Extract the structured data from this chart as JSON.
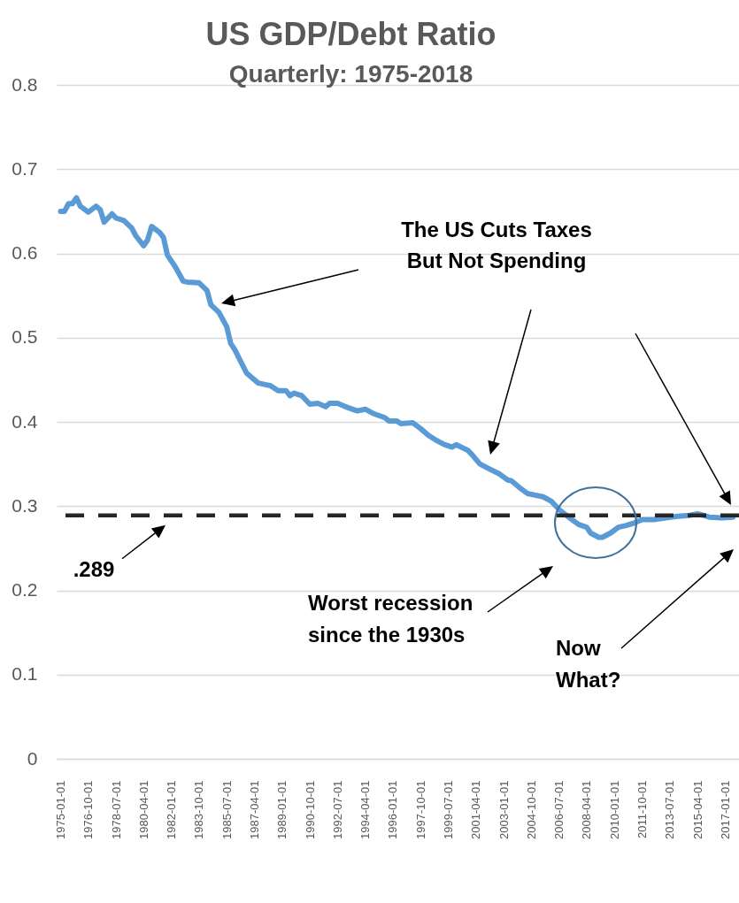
{
  "chart_data": {
    "type": "line",
    "title": "US GDP/Debt Ratio",
    "subtitle": "Quarterly: 1975-2018",
    "x": [
      "1975-01-01",
      "1975-04-01",
      "1975-07-01",
      "1975-10-01",
      "1976-01-01",
      "1976-04-01",
      "1976-10-01",
      "1977-04-01",
      "1977-07-01",
      "1977-10-01",
      "1978-04-01",
      "1978-07-01",
      "1979-01-01",
      "1979-07-01",
      "1979-10-01",
      "1980-04-01",
      "1980-07-01",
      "1980-10-01",
      "1981-04-01",
      "1981-07-01",
      "1981-10-01",
      "1982-04-01",
      "1982-10-01",
      "1983-01-01",
      "1983-10-01",
      "1984-04-01",
      "1984-07-01",
      "1985-01-01",
      "1985-07-01",
      "1985-10-01",
      "1986-01-01",
      "1986-10-01",
      "1987-07-01",
      "1988-01-01",
      "1988-04-01",
      "1988-10-01",
      "1989-04-01",
      "1989-07-01",
      "1989-10-01",
      "1990-04-01",
      "1990-10-01",
      "1991-04-01",
      "1991-10-01",
      "1992-01-01",
      "1992-07-01",
      "1993-01-01",
      "1993-10-01",
      "1994-04-01",
      "1994-10-01",
      "1995-07-01",
      "1995-10-01",
      "1996-04-01",
      "1996-07-01",
      "1997-04-01",
      "1997-10-01",
      "1998-04-01",
      "1998-10-01",
      "1999-04-01",
      "1999-10-01",
      "2000-01-01",
      "2000-10-01",
      "2001-01-01",
      "2001-07-01",
      "2002-01-01",
      "2002-10-01",
      "2003-04-01",
      "2003-07-01",
      "2004-01-01",
      "2004-07-01",
      "2005-01-01",
      "2005-07-01",
      "2006-01-01",
      "2006-07-01",
      "2007-04-01",
      "2007-10-01",
      "2008-04-01",
      "2008-07-01",
      "2009-01-01",
      "2009-04-01",
      "2009-10-01",
      "2010-04-01",
      "2010-10-01",
      "2011-04-01",
      "2011-10-01",
      "2012-07-01",
      "2013-04-01",
      "2014-01-01",
      "2014-10-01",
      "2015-04-01",
      "2016-01-01",
      "2016-10-01",
      "2017-07-01"
    ],
    "series": [
      {
        "color": "#5b9bd5",
        "values": [
          0.65,
          0.65,
          0.659,
          0.659,
          0.666,
          0.656,
          0.649,
          0.656,
          0.652,
          0.637,
          0.647,
          0.642,
          0.639,
          0.63,
          0.621,
          0.609,
          0.616,
          0.632,
          0.625,
          0.619,
          0.598,
          0.584,
          0.567,
          0.566,
          0.565,
          0.556,
          0.539,
          0.53,
          0.513,
          0.493,
          0.486,
          0.458,
          0.446,
          0.444,
          0.443,
          0.437,
          0.437,
          0.431,
          0.434,
          0.431,
          0.421,
          0.422,
          0.418,
          0.422,
          0.422,
          0.418,
          0.413,
          0.415,
          0.41,
          0.405,
          0.401,
          0.401,
          0.398,
          0.399,
          0.392,
          0.384,
          0.378,
          0.373,
          0.37,
          0.373,
          0.366,
          0.361,
          0.35,
          0.345,
          0.338,
          0.331,
          0.33,
          0.322,
          0.315,
          0.313,
          0.311,
          0.306,
          0.296,
          0.285,
          0.278,
          0.275,
          0.268,
          0.263,
          0.263,
          0.268,
          0.275,
          0.277,
          0.28,
          0.284,
          0.284,
          0.286,
          0.288,
          0.289,
          0.291,
          0.287,
          0.286,
          0.287
        ]
      }
    ],
    "xlim": [
      "1974-10-01",
      "2017-11-15"
    ],
    "xticks": [
      "1975-01-01",
      "1976-10-01",
      "1978-07-01",
      "1980-04-01",
      "1982-01-01",
      "1983-10-01",
      "1985-07-01",
      "1987-04-01",
      "1989-01-01",
      "1990-10-01",
      "1992-07-01",
      "1994-04-01",
      "1996-01-01",
      "1997-10-01",
      "1999-07-01",
      "2001-04-01",
      "2003-01-01",
      "2004-10-01",
      "2006-07-01",
      "2008-04-01",
      "2010-01-01",
      "2011-10-01",
      "2013-07-01",
      "2015-04-01",
      "2017-01-01"
    ],
    "ylim": [
      0,
      0.8
    ],
    "yticks": [
      0,
      0.1,
      0.2,
      0.3,
      0.4,
      0.5,
      0.6,
      0.7,
      0.8
    ],
    "grid": "y",
    "ref_lines": [
      {
        "axis": "y",
        "value": 0.289,
        "label": ".289",
        "color": "#262626",
        "line_style": "dashed"
      }
    ],
    "annotations": [
      "The US Cuts Taxes\nBut Not Spending",
      "Worst recession\nsince the 1930s",
      "Now\nWhat?"
    ]
  }
}
